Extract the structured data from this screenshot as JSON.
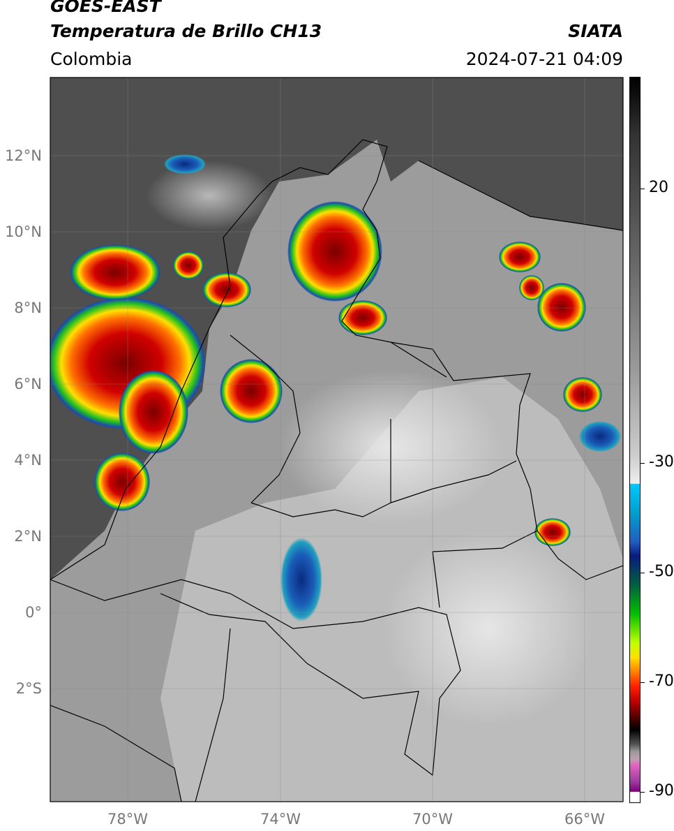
{
  "header": {
    "satellite": "GOES-EAST",
    "product": "Temperatura de Brillo CH13",
    "region": "Colombia",
    "organization": "SIATA",
    "datetime": "2024-07-21 04:09"
  },
  "map": {
    "lon_range": [
      -80,
      -65
    ],
    "lat_range": [
      -5,
      14
    ],
    "lon_ticks": [
      "78°W",
      "74°W",
      "70°W",
      "66°W"
    ],
    "lat_ticks": [
      "12°N",
      "10°N",
      "8°N",
      "6°N",
      "4°N",
      "2°N",
      "0°",
      "2°S"
    ],
    "grid": true,
    "colors": {
      "background": "#555555",
      "land_gray": "#bdbdbd",
      "border": "#000000",
      "convection_red": "#cc0000",
      "convection_orange": "#ff8000",
      "convection_yellow": "#ffe000",
      "convection_green": "#20c020",
      "rain_blue": "#1040a0"
    }
  },
  "colorbar": {
    "labels": [
      "20",
      "-30",
      "-50",
      "-70",
      "-90"
    ],
    "label_values": [
      20,
      -30,
      -50,
      -70,
      -90
    ]
  }
}
